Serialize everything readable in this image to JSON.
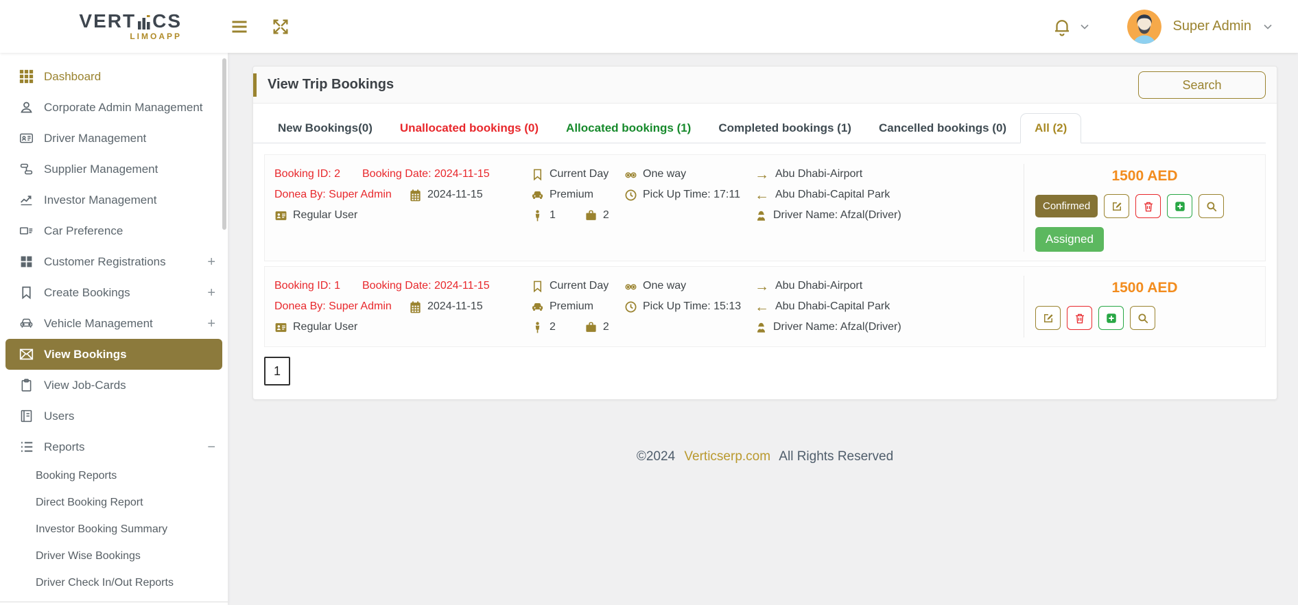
{
  "header": {
    "logo_text": "VERTICS",
    "logo_sub": "LIMOAPP",
    "user_name": "Super Admin"
  },
  "sidebar": {
    "items": [
      {
        "label": "Dashboard",
        "icon": "grid-icon",
        "highlight": true
      },
      {
        "label": "Corporate Admin Management",
        "icon": "user-icon"
      },
      {
        "label": "Driver Management",
        "icon": "id-card-icon"
      },
      {
        "label": "Supplier Management",
        "icon": "hierarchy-icon"
      },
      {
        "label": "Investor Management",
        "icon": "trend-chart-icon"
      },
      {
        "label": "Car Preference",
        "icon": "card-list-icon"
      },
      {
        "label": "Customer Registrations",
        "icon": "squares-icon",
        "expander": "+"
      },
      {
        "label": "Create Bookings",
        "icon": "bookmark-icon",
        "expander": "+"
      },
      {
        "label": "Vehicle Management",
        "icon": "car-icon",
        "expander": "+"
      },
      {
        "label": "View Bookings",
        "icon": "envelope-icon",
        "active": true
      },
      {
        "label": "View Job-Cards",
        "icon": "clipboard-icon"
      },
      {
        "label": "Users",
        "icon": "notebook-icon"
      },
      {
        "label": "Reports",
        "icon": "list-icon",
        "expander": "−"
      }
    ],
    "report_subitems": [
      "Booking Reports",
      "Direct Booking Report",
      "Investor Booking Summary",
      "Driver Wise Bookings",
      "Driver Check In/Out Reports"
    ]
  },
  "main": {
    "title": "View Trip Bookings",
    "search_label": "Search",
    "tabs": [
      {
        "label": "New Bookings(0)",
        "color": "dark"
      },
      {
        "label": "Unallocated bookings (0)",
        "color": "red"
      },
      {
        "label": "Allocated bookings (1)",
        "color": "green"
      },
      {
        "label": "Completed bookings (1)",
        "color": "dark"
      },
      {
        "label": "Cancelled bookings (0)",
        "color": "dark"
      },
      {
        "label": "All (2)",
        "color": "gold",
        "active": true
      }
    ],
    "bookings": [
      {
        "booking_id": "Booking ID: 2",
        "booking_date": "Booking Date: 2024-11-15",
        "done_by": "Donea By: Super Admin",
        "date": "2024-11-15",
        "user_type": "Regular User",
        "day": "Current Day",
        "vehicle_class": "Premium",
        "passengers": "1",
        "bags": "2",
        "trip_type": "One way",
        "pickup_time": "Pick Up Time: 17:11",
        "from": "Abu Dhabi-Airport",
        "to": "Abu Dhabi-Capital Park",
        "driver": "Driver Name:  Afzal(Driver)",
        "price": "1500 AED",
        "status": "Confirmed",
        "assignment": "Assigned"
      },
      {
        "booking_id": "Booking ID: 1",
        "booking_date": "Booking Date: 2024-11-15",
        "done_by": "Donea By: Super Admin",
        "date": "2024-11-15",
        "user_type": "Regular User",
        "day": "Current Day",
        "vehicle_class": "Premium",
        "passengers": "2",
        "bags": "2",
        "trip_type": "One way",
        "pickup_time": "Pick Up Time: 15:13",
        "from": "Abu Dhabi-Airport",
        "to": "Abu Dhabi-Capital Park",
        "driver": "Driver Name:  Afzal(Driver)",
        "price": "1500 AED"
      }
    ],
    "pagination": "1"
  },
  "footer": {
    "copyright": "©2024",
    "brand": "Verticserp.com",
    "rights": "All Rights Reserved"
  },
  "colors": {
    "gold": "#9a832f",
    "sidebar_active_bg": "#8c7a3c",
    "red": "#e8282c",
    "tab_green": "#178a2c",
    "price_orange": "#f28c1e",
    "assigned_green": "#5cb85f",
    "confirmed_olive": "#857335"
  }
}
